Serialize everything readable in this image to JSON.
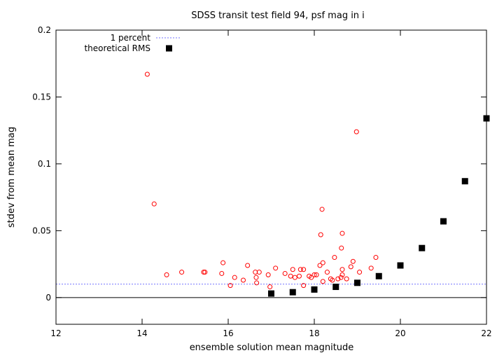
{
  "chart_data": {
    "type": "scatter",
    "title": "SDSS transit test field 94, psf mag in i",
    "xlabel": "ensemble solution mean magnitude",
    "ylabel": "stdev from mean mag",
    "xlim": [
      12,
      22
    ],
    "ylim": [
      -0.02,
      0.2
    ],
    "xticks": [
      12,
      14,
      16,
      18,
      20,
      22
    ],
    "yticks": [
      0,
      0.05,
      0.1,
      0.15,
      0.2
    ],
    "xtick_labels": [
      "12",
      "14",
      "16",
      "18",
      "20",
      "22"
    ],
    "ytick_labels": [
      "0",
      "0.05",
      "0.1",
      "0.15",
      "0.2"
    ],
    "grid": false,
    "legend_position": "top-left",
    "reference_lines": [
      {
        "name": "1 percent",
        "y": 0.01,
        "color": "#4444ff",
        "style": "dashed"
      },
      {
        "y": 0,
        "color": "#000000",
        "style": "solid"
      }
    ],
    "series": [
      {
        "marker": "open-circle",
        "color": "#ff0000",
        "points": [
          [
            14.12,
            0.167
          ],
          [
            14.28,
            0.07
          ],
          [
            14.57,
            0.017
          ],
          [
            14.92,
            0.019
          ],
          [
            15.43,
            0.019
          ],
          [
            15.46,
            0.019
          ],
          [
            15.85,
            0.018
          ],
          [
            15.88,
            0.026
          ],
          [
            16.05,
            0.009
          ],
          [
            16.15,
            0.015
          ],
          [
            16.35,
            0.013
          ],
          [
            16.45,
            0.024
          ],
          [
            16.63,
            0.019
          ],
          [
            16.65,
            0.015
          ],
          [
            16.66,
            0.011
          ],
          [
            16.72,
            0.019
          ],
          [
            16.93,
            0.017
          ],
          [
            16.97,
            0.008
          ],
          [
            17.1,
            0.022
          ],
          [
            17.32,
            0.018
          ],
          [
            17.45,
            0.016
          ],
          [
            17.5,
            0.021
          ],
          [
            17.55,
            0.015
          ],
          [
            17.65,
            0.016
          ],
          [
            17.68,
            0.021
          ],
          [
            17.75,
            0.021
          ],
          [
            17.75,
            0.009
          ],
          [
            17.88,
            0.016
          ],
          [
            17.93,
            0.015
          ],
          [
            18.0,
            0.017
          ],
          [
            18.05,
            0.017
          ],
          [
            18.13,
            0.024
          ],
          [
            18.15,
            0.047
          ],
          [
            18.18,
            0.066
          ],
          [
            18.2,
            0.026
          ],
          [
            18.2,
            0.012
          ],
          [
            18.3,
            0.019
          ],
          [
            18.38,
            0.014
          ],
          [
            18.42,
            0.013
          ],
          [
            18.47,
            0.03
          ],
          [
            18.55,
            0.014
          ],
          [
            18.62,
            0.015
          ],
          [
            18.63,
            0.037
          ],
          [
            18.65,
            0.017
          ],
          [
            18.65,
            0.021
          ],
          [
            18.65,
            0.048
          ],
          [
            18.75,
            0.014
          ],
          [
            18.85,
            0.023
          ],
          [
            18.9,
            0.027
          ],
          [
            18.98,
            0.124
          ],
          [
            19.05,
            0.019
          ],
          [
            19.32,
            0.022
          ],
          [
            19.43,
            0.03
          ]
        ]
      },
      {
        "name": "theoretical RMS",
        "marker": "filled-square",
        "color": "#000000",
        "points": [
          [
            17.0,
            0.003
          ],
          [
            17.5,
            0.004
          ],
          [
            18.0,
            0.006
          ],
          [
            18.5,
            0.008
          ],
          [
            19.0,
            0.011
          ],
          [
            19.5,
            0.016
          ],
          [
            20.0,
            0.024
          ],
          [
            20.5,
            0.037
          ],
          [
            21.0,
            0.057
          ],
          [
            21.5,
            0.087
          ],
          [
            22.0,
            0.134
          ]
        ]
      }
    ]
  }
}
